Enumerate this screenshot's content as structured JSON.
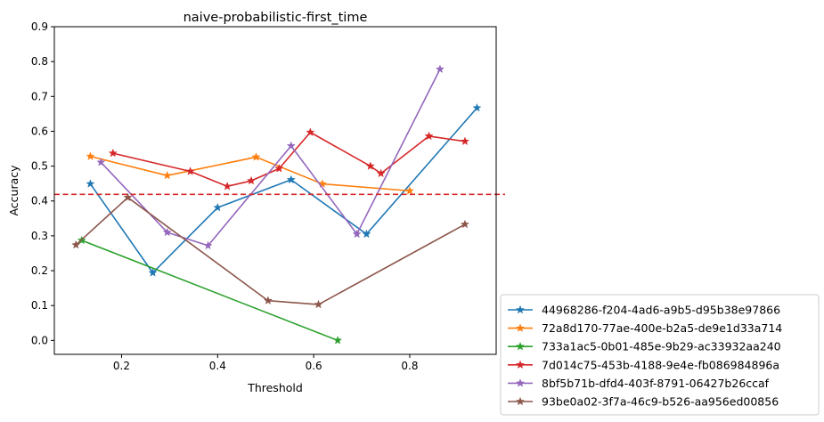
{
  "chart_data": {
    "type": "line",
    "title": "naive-probabilistic-first_time",
    "xlabel": "Threshold",
    "ylabel": "Accuracy",
    "xlim": [
      0.06,
      0.98
    ],
    "ylim": [
      -0.04,
      0.9
    ],
    "xticks": [
      "0.2",
      "0.4",
      "0.6",
      "0.8"
    ],
    "xtick_values": [
      0.2,
      0.4,
      0.6,
      0.8
    ],
    "yticks": [
      "0.0",
      "0.1",
      "0.2",
      "0.3",
      "0.4",
      "0.5",
      "0.6",
      "0.7",
      "0.8",
      "0.9"
    ],
    "ytick_values": [
      0.0,
      0.1,
      0.2,
      0.3,
      0.4,
      0.5,
      0.6,
      0.7,
      0.8,
      0.9
    ],
    "grid": false,
    "legend_position": "outside-bottom-right",
    "marker": "star",
    "reference_line": {
      "y": 0.419,
      "color": "#d62728",
      "style": "dashed"
    },
    "series": [
      {
        "name": "44968286-f204-4ad6-a9b5-d95b38e97866",
        "color": "#1f77b4",
        "x": [
          0.135,
          0.265,
          0.4,
          0.553,
          0.71,
          0.94
        ],
        "y": [
          0.449,
          0.194,
          0.381,
          0.461,
          0.305,
          0.667
        ]
      },
      {
        "name": "72a8d170-77ae-400e-b2a5-de9e1d33a714",
        "color": "#ff7f0e",
        "x": [
          0.135,
          0.295,
          0.48,
          0.618,
          0.8
        ],
        "y": [
          0.528,
          0.473,
          0.526,
          0.449,
          0.429
        ]
      },
      {
        "name": "733a1ac5-0b01-485e-9b29-ac33932aa240",
        "color": "#2ca02c",
        "x": [
          0.117,
          0.65
        ],
        "y": [
          0.287,
          0.0
        ]
      },
      {
        "name": "7d014c75-453b-4188-9e4e-fb086984896a",
        "color": "#d62728",
        "x": [
          0.182,
          0.343,
          0.42,
          0.47,
          0.528,
          0.593,
          0.718,
          0.74,
          0.84,
          0.915
        ],
        "y": [
          0.537,
          0.485,
          0.442,
          0.458,
          0.493,
          0.597,
          0.5,
          0.479,
          0.586,
          0.571
        ]
      },
      {
        "name": "8bf5b71b-dfd4-403f-8791-06427b26ccaf",
        "color": "#9467bd",
        "x": [
          0.157,
          0.295,
          0.38,
          0.553,
          0.69,
          0.863
        ],
        "y": [
          0.511,
          0.31,
          0.272,
          0.558,
          0.305,
          0.778
        ]
      },
      {
        "name": "93be0a02-3f7a-46c9-b526-aa956ed00856",
        "color": "#8c564b",
        "x": [
          0.105,
          0.213,
          0.505,
          0.61,
          0.915
        ],
        "y": [
          0.274,
          0.41,
          0.114,
          0.103,
          0.333
        ]
      }
    ]
  }
}
